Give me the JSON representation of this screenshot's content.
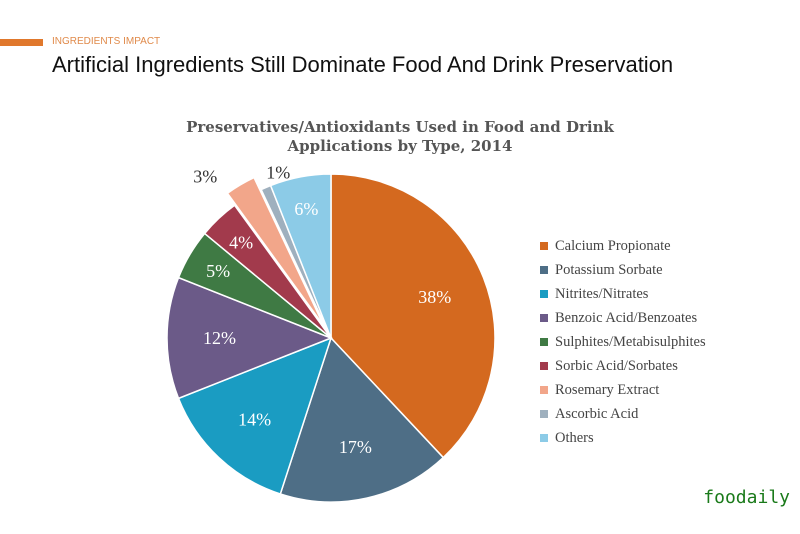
{
  "header": {
    "kicker": "INGREDIENTS IMPACT",
    "headline": "Artificial Ingredients Still Dominate Food And Drink Preservation"
  },
  "watermark": "foodaily",
  "chart_data": {
    "type": "pie",
    "title": "Preservatives/Antioxidants Used in Food and Drink Applications by Type, 2014",
    "title_lines": [
      "Preservatives/Antioxidants Used in Food and Drink",
      "Applications by Type, 2014"
    ],
    "legend_position": "right",
    "slices": [
      {
        "label": "Calcium Propionate",
        "value": 38,
        "display": "38%",
        "color": "#d4691f"
      },
      {
        "label": "Potassium Sorbate",
        "value": 17,
        "display": "17%",
        "color": "#4e6e86"
      },
      {
        "label": "Nitrites/Nitrates",
        "value": 14,
        "display": "14%",
        "color": "#1a9cc2"
      },
      {
        "label": "Benzoic Acid/Benzoates",
        "value": 12,
        "display": "12%",
        "color": "#6b5a88"
      },
      {
        "label": "Sulphites/Metabisulphites",
        "value": 5,
        "display": "5%",
        "color": "#3f7a44"
      },
      {
        "label": "Sorbic Acid/Sorbates",
        "value": 4,
        "display": "4%",
        "color": "#a23a4c"
      },
      {
        "label": "Rosemary Extract",
        "value": 3,
        "display": "3%",
        "color": "#f2a68a",
        "exploded": true
      },
      {
        "label": "Ascorbic Acid",
        "value": 1,
        "display": "1%",
        "color": "#9fb0be"
      },
      {
        "label": "Others",
        "value": 6,
        "display": "6%",
        "color": "#8ccbe7"
      }
    ]
  }
}
